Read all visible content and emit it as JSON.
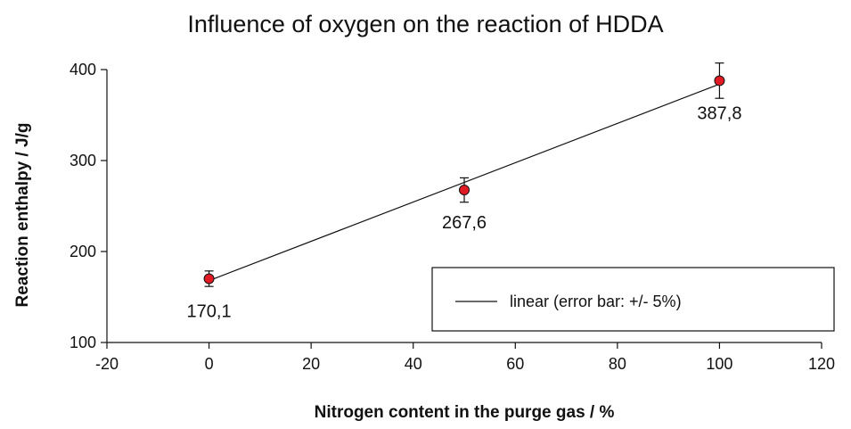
{
  "chart_data": {
    "type": "scatter",
    "title": "Influence of oxygen on the reaction of HDDA",
    "xlabel": "Nitrogen content in the purge gas / %",
    "ylabel": "Reaction enthalpy / J/g",
    "xlim": [
      -20,
      120
    ],
    "ylim": [
      100,
      400
    ],
    "x_ticks": [
      -20,
      0,
      20,
      40,
      60,
      80,
      100,
      120
    ],
    "y_ticks": [
      100,
      200,
      300,
      400
    ],
    "grid": false,
    "legend_position": "bottom-right",
    "series": [
      {
        "x": [
          0,
          50,
          100
        ],
        "y": [
          170.1,
          267.6,
          387.8
        ],
        "labels": [
          "170,1",
          "267,6",
          "387,8"
        ],
        "error_percent": 5,
        "marker_color": "#e01b24"
      }
    ],
    "fit_line": {
      "name": "linear (error bar: +/- 5%)",
      "x": [
        0,
        100
      ],
      "y": [
        168,
        384
      ]
    }
  }
}
